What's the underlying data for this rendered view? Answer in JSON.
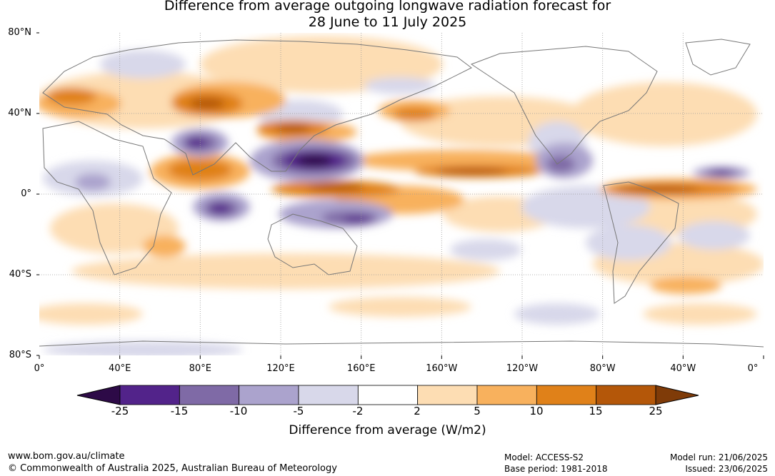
{
  "title": {
    "line1": "Difference from average outgoing longwave radiation forecast for",
    "line2": "28 June to 11 July 2025"
  },
  "map": {
    "lat_labels": [
      "80°N",
      "40°N",
      "0°",
      "40°S",
      "80°S"
    ],
    "lon_labels": [
      "0°",
      "40°E",
      "80°E",
      "120°E",
      "160°E",
      "160°W",
      "120°W",
      "80°W",
      "40°W",
      "0°"
    ]
  },
  "colorbar": {
    "title": "Difference from average (W/m2)",
    "ticks": [
      "-25",
      "-15",
      "-10",
      "-5",
      "-2",
      "2",
      "5",
      "10",
      "15",
      "25"
    ],
    "colors": {
      "below": "#2d0a47",
      "bins": [
        "#52238a",
        "#7f6aa6",
        "#aba3cd",
        "#d8d8ea",
        "#ffffff",
        "#fdddb3",
        "#f8b15d",
        "#e08119",
        "#b45709"
      ],
      "above": "#7f3b08"
    }
  },
  "footer": {
    "url": "www.bom.gov.au/climate",
    "copyright": "© Commonwealth of Australia 2025, Australian Bureau of Meteorology",
    "model": "Model: ACCESS-S2",
    "base_period": "Base period: 1981-2018",
    "model_run": "Model run: 21/06/2025",
    "issued": "Issued: 23/06/2025"
  }
}
